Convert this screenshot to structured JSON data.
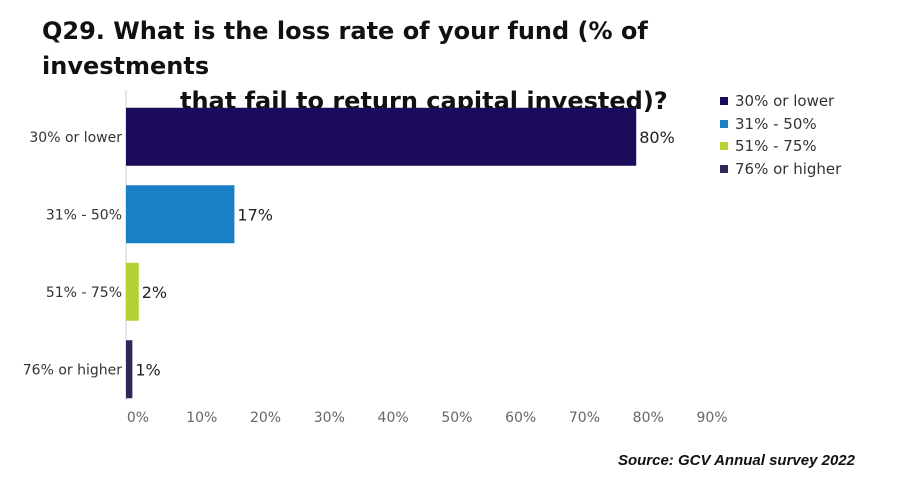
{
  "title_lines": [
    "Q29. What is the loss rate of your fund (% of investments",
    "that fail to return capital invested)?"
  ],
  "source": "Source: GCV Annual survey 2022",
  "chart_data": {
    "type": "bar",
    "orientation": "horizontal",
    "categories": [
      "30% or lower",
      "31% - 50%",
      "51%  - 75%",
      "76% or higher"
    ],
    "values": [
      80,
      17,
      2,
      1
    ],
    "value_labels": [
      "80%",
      "17%",
      "2%",
      "1%"
    ],
    "colors": [
      "#1c0b5c",
      "#1a80c5",
      "#b2d235",
      "#2d2857"
    ],
    "xlim": [
      0,
      90
    ],
    "xticks": [
      "0%",
      "10%",
      "20%",
      "30%",
      "40%",
      "50%",
      "60%",
      "70%",
      "80%",
      "90%"
    ],
    "legend": {
      "position": "right",
      "entries": [
        "30% or lower",
        "31% - 50%",
        "51%  - 75%",
        "76% or higher"
      ]
    },
    "grid": false
  }
}
